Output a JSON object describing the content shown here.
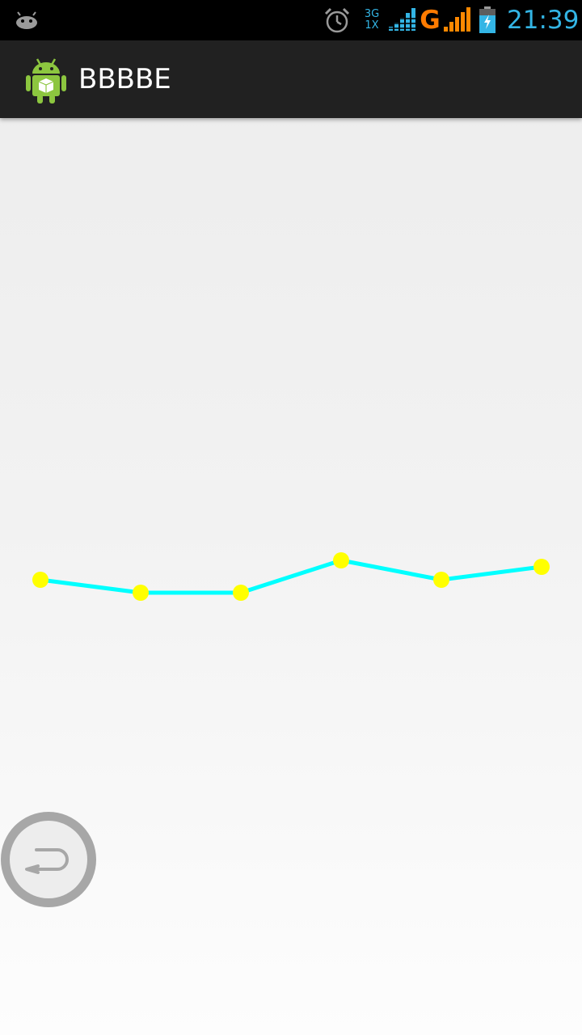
{
  "status_bar": {
    "network_type_top": "3G",
    "network_type_bottom": "1X",
    "data_indicator": "G",
    "time": "21:39",
    "icons": [
      "android-notification-icon",
      "alarm-icon",
      "signal-strength-icon",
      "signal-strength-icon",
      "battery-charging-icon"
    ]
  },
  "action_bar": {
    "app_icon": "android-app-icon",
    "title": "BBBBE"
  },
  "chart_data": {
    "type": "line",
    "x": [
      1,
      2,
      3,
      4,
      5,
      6
    ],
    "values": [
      2,
      1,
      1,
      3.5,
      2,
      3
    ],
    "line_color": "#00ffff",
    "point_color": "#ffff00",
    "grid": false,
    "title": "",
    "xlabel": "",
    "ylabel": ""
  },
  "floating_button": {
    "icon": "back-arrow-icon"
  },
  "colors": {
    "status_accent": "#33b5e5",
    "data_indicator": "#ff7b00",
    "action_bar": "#212121"
  }
}
